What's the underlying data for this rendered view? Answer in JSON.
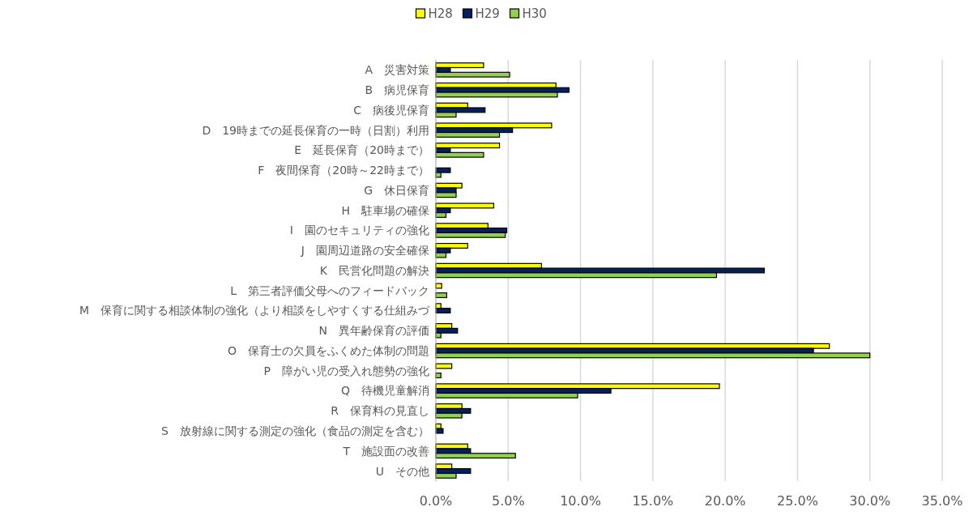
{
  "chart_data": {
    "type": "bar",
    "orientation": "horizontal",
    "categories": [
      "A　災害対策",
      "B　病児保育",
      "C　病後児保育",
      "D　19時までの延長保育の一時（日割）利用",
      "E　延長保育（20時まで）",
      "F　夜間保育（20時～22時まで）",
      "G　休日保育",
      "H　駐車場の確保",
      "I　園のセキュリティの強化",
      "J　園周辺道路の安全確保",
      "K　民営化問題の解決",
      "L　第三者評価父母へのフィードバック",
      "M　保育に関する相談体制の強化（より相談をしやすくする仕組みづ",
      "N　異年齢保育の評価",
      "O　保育士の欠員をふくめた体制の問題",
      "P　障がい児の受入れ態勢の強化",
      "Q　待機児童解消",
      "R　保育料の見直し",
      "S　放射線に関する測定の強化（食品の測定を含む）",
      "T　施設面の改善",
      "U　その他"
    ],
    "series": [
      {
        "name": "H28",
        "color": "#ffff00",
        "values": [
          3.3,
          8.3,
          2.2,
          8.0,
          4.4,
          0,
          1.8,
          4.0,
          3.6,
          2.2,
          7.3,
          0.4,
          0.35,
          1.1,
          27.2,
          1.1,
          19.6,
          1.8,
          0.35,
          2.2,
          1.1
        ]
      },
      {
        "name": "H29",
        "color": "#002060",
        "values": [
          1.0,
          9.2,
          3.4,
          5.3,
          1.0,
          1.0,
          1.4,
          1.0,
          4.9,
          1.0,
          22.7,
          0,
          1.0,
          1.5,
          26.1,
          0,
          12.1,
          2.4,
          0.5,
          2.4,
          2.4
        ]
      },
      {
        "name": "H30",
        "color": "#92d050",
        "values": [
          5.1,
          8.4,
          1.4,
          4.4,
          3.3,
          0.35,
          1.4,
          0.7,
          4.8,
          0.7,
          19.4,
          0.75,
          0,
          0.35,
          30.0,
          0.35,
          9.8,
          1.8,
          0,
          5.5,
          1.4
        ]
      }
    ],
    "xlim": [
      0,
      35
    ],
    "xticks": [
      {
        "value": 0,
        "label": "0.0%"
      },
      {
        "value": 5,
        "label": "5.0%"
      },
      {
        "value": 10,
        "label": "10.0%"
      },
      {
        "value": 15,
        "label": "15.0%"
      },
      {
        "value": 20,
        "label": "20.0%"
      },
      {
        "value": 25,
        "label": "25.0%"
      },
      {
        "value": 30,
        "label": "30.0%"
      },
      {
        "value": 35,
        "label": "35.0%"
      }
    ],
    "grid": "x",
    "legend": "top"
  }
}
